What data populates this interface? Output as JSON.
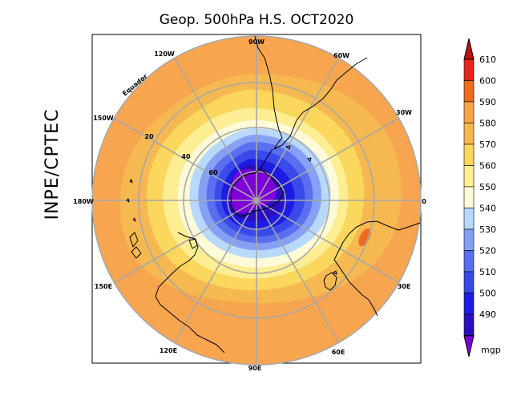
{
  "title": "Geop. 500hPa H.S. OCT2020",
  "credit": "INPE/CPTEC",
  "equator_label": "Equador",
  "longitude_labels": [
    "90W",
    "60W",
    "30W",
    "0",
    "30E",
    "60E",
    "90E",
    "120E",
    "150E",
    "180W",
    "150W",
    "120W"
  ],
  "latitude_labels": [
    "20",
    "40",
    "60"
  ],
  "colorbar": {
    "unit": "mgp",
    "levels": [
      "490",
      "500",
      "510",
      "520",
      "530",
      "540",
      "550",
      "560",
      "570",
      "580",
      "590",
      "600",
      "610"
    ],
    "colors": [
      "#2a0fc0",
      "#1c1ce4",
      "#3a4aea",
      "#5a6fef",
      "#86a1f4",
      "#b9d9fb",
      "#fffbd8",
      "#fdee93",
      "#fbd75d",
      "#f6b951",
      "#f8a54f",
      "#ee6b1f",
      "#e6231a"
    ],
    "min_color": "#7e00d8",
    "max_color": "#c0100e"
  },
  "field_colors": {
    "outer": "#f8a54f",
    "ring": "#f6b951",
    "pale_blue": "#b9d9fb",
    "core": "#7e00d8",
    "land_line": "#000000",
    "grid_line": "#a8a8a8"
  }
}
